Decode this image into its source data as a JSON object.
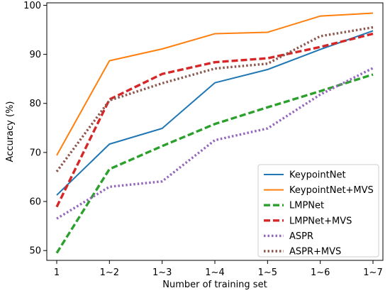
{
  "chart_data": {
    "type": "line",
    "xlabel": "Number of training set",
    "ylabel": "Accuracy (%)",
    "categories": [
      "1",
      "1~2",
      "1~3",
      "1~4",
      "1~5",
      "1~6",
      "1~7"
    ],
    "ylim": [
      48,
      100.5
    ],
    "yticks": [
      50,
      60,
      70,
      80,
      90,
      100
    ],
    "grid": false,
    "legend_position": "lower-right",
    "series": [
      {
        "name": "KeypointNet",
        "values": [
          61.3,
          71.7,
          74.9,
          84.2,
          86.9,
          91.0,
          94.8
        ],
        "color": "#1f77b4",
        "style": "solid"
      },
      {
        "name": "KeypointNet+MVS",
        "values": [
          69.4,
          88.7,
          91.1,
          94.2,
          94.5,
          97.8,
          98.4
        ],
        "color": "#ff7f0e",
        "style": "solid"
      },
      {
        "name": "LMPNet",
        "values": [
          49.5,
          66.6,
          71.3,
          75.8,
          79.2,
          82.5,
          85.9
        ],
        "color": "#2ca02c",
        "style": "dashed"
      },
      {
        "name": "LMPNet+MVS",
        "values": [
          58.9,
          80.8,
          86.0,
          88.4,
          89.2,
          91.5,
          94.2
        ],
        "color": "#d62728",
        "style": "dashed"
      },
      {
        "name": "ASPR",
        "values": [
          56.5,
          63.0,
          64.1,
          72.5,
          74.9,
          81.8,
          87.2
        ],
        "color": "#9467bd",
        "style": "dotted"
      },
      {
        "name": "ASPR+MVS",
        "values": [
          66.1,
          80.6,
          84.1,
          87.1,
          88.1,
          93.7,
          95.5
        ],
        "color": "#8c564b",
        "style": "dotted"
      }
    ]
  }
}
